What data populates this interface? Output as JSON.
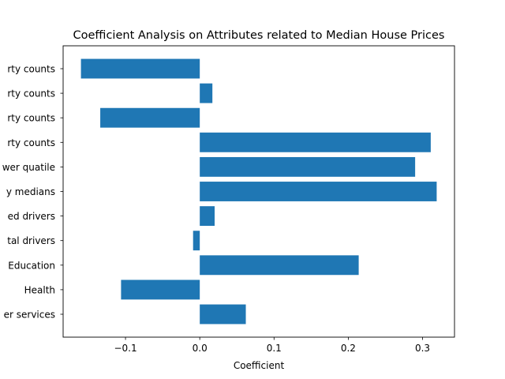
{
  "chart_data": {
    "type": "bar",
    "orientation": "horizontal",
    "title": "Coefficient Analysis on Attributes related to Median House Prices",
    "xlabel": "Coefficient",
    "ylabel": "",
    "categories": [
      "er services",
      "Health",
      "Education",
      "tal drivers",
      "ed drivers",
      "y medians",
      "wer quatile",
      "rty counts",
      "rty counts",
      "rty counts",
      "rty counts"
    ],
    "values": [
      0.062,
      -0.106,
      0.214,
      -0.009,
      0.02,
      0.319,
      0.29,
      0.311,
      -0.134,
      0.017,
      -0.16
    ],
    "xlim": [
      -0.184,
      0.343
    ],
    "xticks": [
      -0.1,
      0.0,
      0.1,
      0.2,
      0.3
    ],
    "xtick_labels": [
      "−0.1",
      "0.0",
      "0.1",
      "0.2",
      "0.3"
    ],
    "bar_color": "#1f77b4",
    "grid": false,
    "legend": "none"
  }
}
